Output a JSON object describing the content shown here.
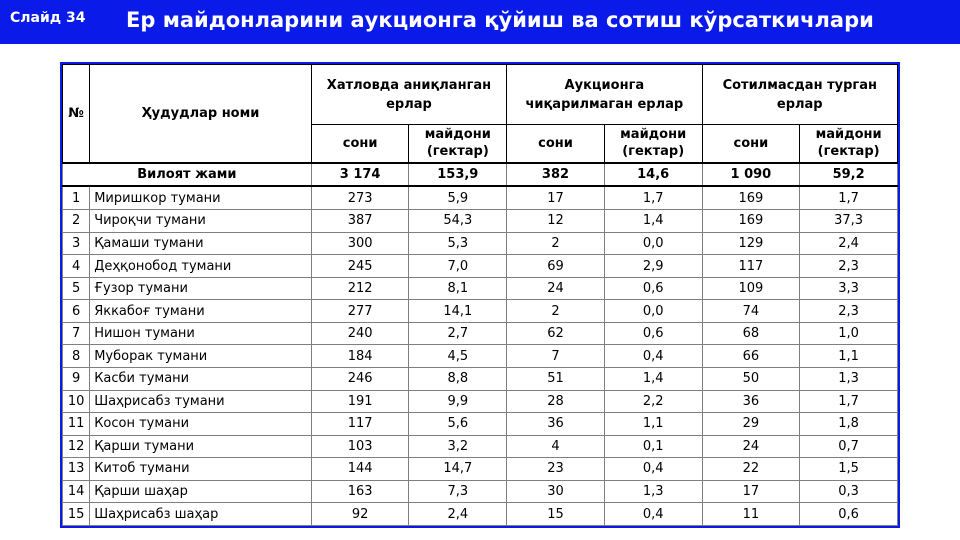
{
  "slide": {
    "number_label": "Слайд 34",
    "title": "Ер майдонларини аукционга қўйиш ва сотиш кўрсаткичлари"
  },
  "table": {
    "headers": {
      "no": "№",
      "region": "Ҳудудлар номи",
      "group1": "Хатловда аниқланган ерлар",
      "group2": "Аукционга чиқарилмаган ерлар",
      "group3": "Сотилмасдан турган ерлар",
      "count": "сони",
      "area": "майдони (гектар)"
    },
    "total": {
      "label": "Вилоят жами",
      "values": [
        "3 174",
        "153,9",
        "382",
        "14,6",
        "1 090",
        "59,2"
      ]
    },
    "rows": [
      {
        "no": "1",
        "name": "Миришкор тумани",
        "values": [
          "273",
          "5,9",
          "17",
          "1,7",
          "169",
          "1,7"
        ]
      },
      {
        "no": "2",
        "name": "Чироқчи тумани",
        "values": [
          "387",
          "54,3",
          "12",
          "1,4",
          "169",
          "37,3"
        ]
      },
      {
        "no": "3",
        "name": "Қамаши тумани",
        "values": [
          "300",
          "5,3",
          "2",
          "0,0",
          "129",
          "2,4"
        ]
      },
      {
        "no": "4",
        "name": "Деҳқонобод тумани",
        "values": [
          "245",
          "7,0",
          "69",
          "2,9",
          "117",
          "2,3"
        ]
      },
      {
        "no": "5",
        "name": "Ғузор тумани",
        "values": [
          "212",
          "8,1",
          "24",
          "0,6",
          "109",
          "3,3"
        ]
      },
      {
        "no": "6",
        "name": "Яккабоғ тумани",
        "values": [
          "277",
          "14,1",
          "2",
          "0,0",
          "74",
          "2,3"
        ]
      },
      {
        "no": "7",
        "name": "Нишон тумани",
        "values": [
          "240",
          "2,7",
          "62",
          "0,6",
          "68",
          "1,0"
        ]
      },
      {
        "no": "8",
        "name": "Муборак тумани",
        "values": [
          "184",
          "4,5",
          "7",
          "0,4",
          "66",
          "1,1"
        ]
      },
      {
        "no": "9",
        "name": "Касби тумани",
        "values": [
          "246",
          "8,8",
          "51",
          "1,4",
          "50",
          "1,3"
        ]
      },
      {
        "no": "10",
        "name": "Шаҳрисабз тумани",
        "values": [
          "191",
          "9,9",
          "28",
          "2,2",
          "36",
          "1,7"
        ]
      },
      {
        "no": "11",
        "name": "Косон тумани",
        "values": [
          "117",
          "5,6",
          "36",
          "1,1",
          "29",
          "1,8"
        ]
      },
      {
        "no": "12",
        "name": "Қарши тумани",
        "values": [
          "103",
          "3,2",
          "4",
          "0,1",
          "24",
          "0,7"
        ]
      },
      {
        "no": "13",
        "name": "Китоб тумани",
        "values": [
          "144",
          "14,7",
          "23",
          "0,4",
          "22",
          "1,5"
        ]
      },
      {
        "no": "14",
        "name": "Қарши шаҳар",
        "values": [
          "163",
          "7,3",
          "30",
          "1,3",
          "17",
          "0,3"
        ]
      },
      {
        "no": "15",
        "name": "Шаҳрисабз шаҳар",
        "values": [
          "92",
          "2,4",
          "15",
          "0,4",
          "11",
          "0,6"
        ]
      }
    ]
  },
  "colors": {
    "title_bar": "#0a1ae8",
    "title_text": "#ffffff"
  }
}
